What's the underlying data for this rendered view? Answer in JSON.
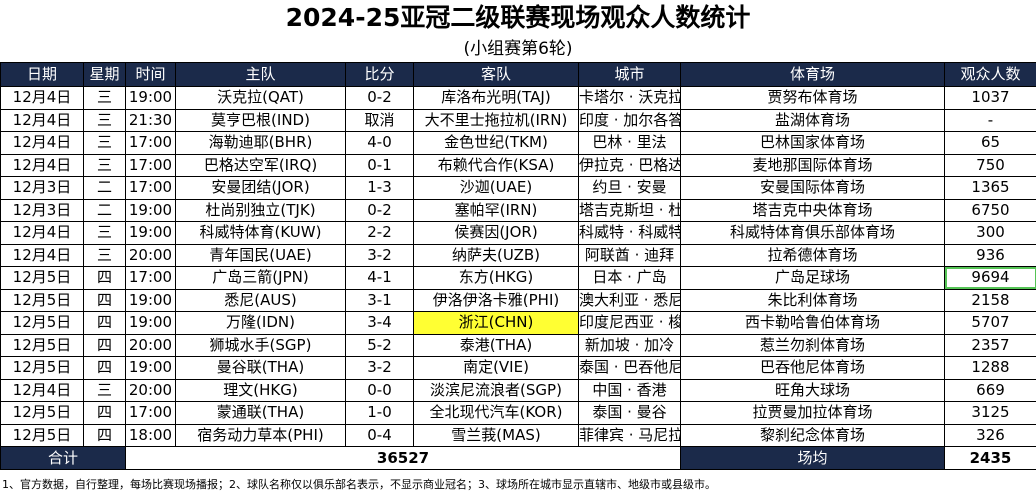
{
  "title": "2024-25亚冠二级联赛现场观众人数统计",
  "subtitle": "(小组赛第6轮)",
  "headers": [
    "日期",
    "星期",
    "时间",
    "主队",
    "比分",
    "客队",
    "城市",
    "体育场",
    "观众人数"
  ],
  "rows": [
    {
      "date": "12月4日",
      "weekday": "三",
      "time": "19:00",
      "home": "沃克拉(QAT)",
      "score": "0-2",
      "away": "库洛布光明(TAJ)",
      "city": "卡塔尔 · 沃克拉",
      "stadium": "贾努布体育场",
      "attendance": "1037"
    },
    {
      "date": "12月4日",
      "weekday": "三",
      "time": "21:30",
      "home": "莫亨巴根(IND)",
      "score": "取消",
      "away": "大不里士拖拉机(IRN)",
      "city": "印度 · 加尔各答",
      "stadium": "盐湖体育场",
      "attendance": "-"
    },
    {
      "date": "12月4日",
      "weekday": "三",
      "time": "17:00",
      "home": "海勒迪耶(BHR)",
      "score": "4-0",
      "away": "金色世纪(TKM)",
      "city": "巴林 · 里法",
      "stadium": "巴林国家体育场",
      "attendance": "65"
    },
    {
      "date": "12月4日",
      "weekday": "三",
      "time": "17:00",
      "home": "巴格达空军(IRQ)",
      "score": "0-1",
      "away": "布赖代合作(KSA)",
      "city": "伊拉克 · 巴格达",
      "stadium": "麦地那国际体育场",
      "attendance": "750"
    },
    {
      "date": "12月3日",
      "weekday": "二",
      "time": "17:00",
      "home": "安曼团结(JOR)",
      "score": "1-3",
      "away": "沙迦(UAE)",
      "city": "约旦 · 安曼",
      "stadium": "安曼国际体育场",
      "attendance": "1365"
    },
    {
      "date": "12月3日",
      "weekday": "二",
      "time": "19:00",
      "home": "杜尚别独立(TJK)",
      "score": "0-2",
      "away": "塞帕罕(IRN)",
      "city": "塔吉克斯坦 · 杜尚别",
      "stadium": "塔吉克中央体育场",
      "attendance": "6750"
    },
    {
      "date": "12月4日",
      "weekday": "三",
      "time": "19:00",
      "home": "科威特体育(KUW)",
      "score": "2-2",
      "away": "侯赛因(JOR)",
      "city": "科威特 · 科威特城",
      "stadium": "科威特体育俱乐部体育场",
      "attendance": "300"
    },
    {
      "date": "12月4日",
      "weekday": "三",
      "time": "20:00",
      "home": "青年国民(UAE)",
      "score": "3-2",
      "away": "纳萨夫(UZB)",
      "city": "阿联酋 · 迪拜",
      "stadium": "拉希德体育场",
      "attendance": "936"
    },
    {
      "date": "12月5日",
      "weekday": "四",
      "time": "17:00",
      "home": "广岛三箭(JPN)",
      "score": "4-1",
      "away": "东方(HKG)",
      "city": "日本 · 广岛",
      "stadium": "广岛足球场",
      "attendance": "9694"
    },
    {
      "date": "12月5日",
      "weekday": "四",
      "time": "19:00",
      "home": "悉尼(AUS)",
      "score": "3-1",
      "away": "伊洛伊洛卡雅(PHI)",
      "city": "澳大利亚 · 悉尼",
      "stadium": "朱比利体育场",
      "attendance": "2158"
    },
    {
      "date": "12月5日",
      "weekday": "四",
      "time": "19:00",
      "home": "万隆(IDN)",
      "score": "3-4",
      "away": "浙江(CHN)",
      "city": "印度尼西亚 · 梭里昂",
      "stadium": "西卡勒哈鲁伯体育场",
      "attendance": "5707"
    },
    {
      "date": "12月5日",
      "weekday": "四",
      "time": "20:00",
      "home": "狮城水手(SGP)",
      "score": "5-2",
      "away": "泰港(THA)",
      "city": "新加坡 · 加冷",
      "stadium": "惹兰勿刹体育场",
      "attendance": "2357"
    },
    {
      "date": "12月5日",
      "weekday": "四",
      "time": "19:00",
      "home": "曼谷联(THA)",
      "score": "3-2",
      "away": "南定(VIE)",
      "city": "泰国 · 巴吞他尼",
      "stadium": "巴吞他尼体育场",
      "attendance": "1288"
    },
    {
      "date": "12月4日",
      "weekday": "三",
      "time": "20:00",
      "home": "理文(HKG)",
      "score": "0-0",
      "away": "淡滨尼流浪者(SGP)",
      "city": "中国 · 香港",
      "stadium": "旺角大球场",
      "attendance": "669"
    },
    {
      "date": "12月5日",
      "weekday": "四",
      "time": "17:00",
      "home": "蒙通联(THA)",
      "score": "1-0",
      "away": "全北现代汽车(KOR)",
      "city": "泰国 · 曼谷",
      "stadium": "拉贾曼加拉体育场",
      "attendance": "3125"
    },
    {
      "date": "12月5日",
      "weekday": "四",
      "time": "18:00",
      "home": "宿务动力草本(PHI)",
      "score": "0-4",
      "away": "雪兰莪(MAS)",
      "city": "菲律宾 · 马尼拉",
      "stadium": "黎刹纪念体育场",
      "attendance": "326"
    }
  ],
  "total": {
    "label": "合计",
    "value": "36527",
    "avg_label": "场均",
    "avg_value": "2435"
  },
  "footnote": "1、官方数据，自行整理，每场比赛现场播报；2、球队名称仅以俱乐部名表示，不显示商业冠名；3、球场所在城市显示直辖市、地级市或县级市。",
  "highlight_colors": {
    "yellow": "#ffff33",
    "green": "#55c455",
    "header_bg": "#1b2a4a"
  }
}
